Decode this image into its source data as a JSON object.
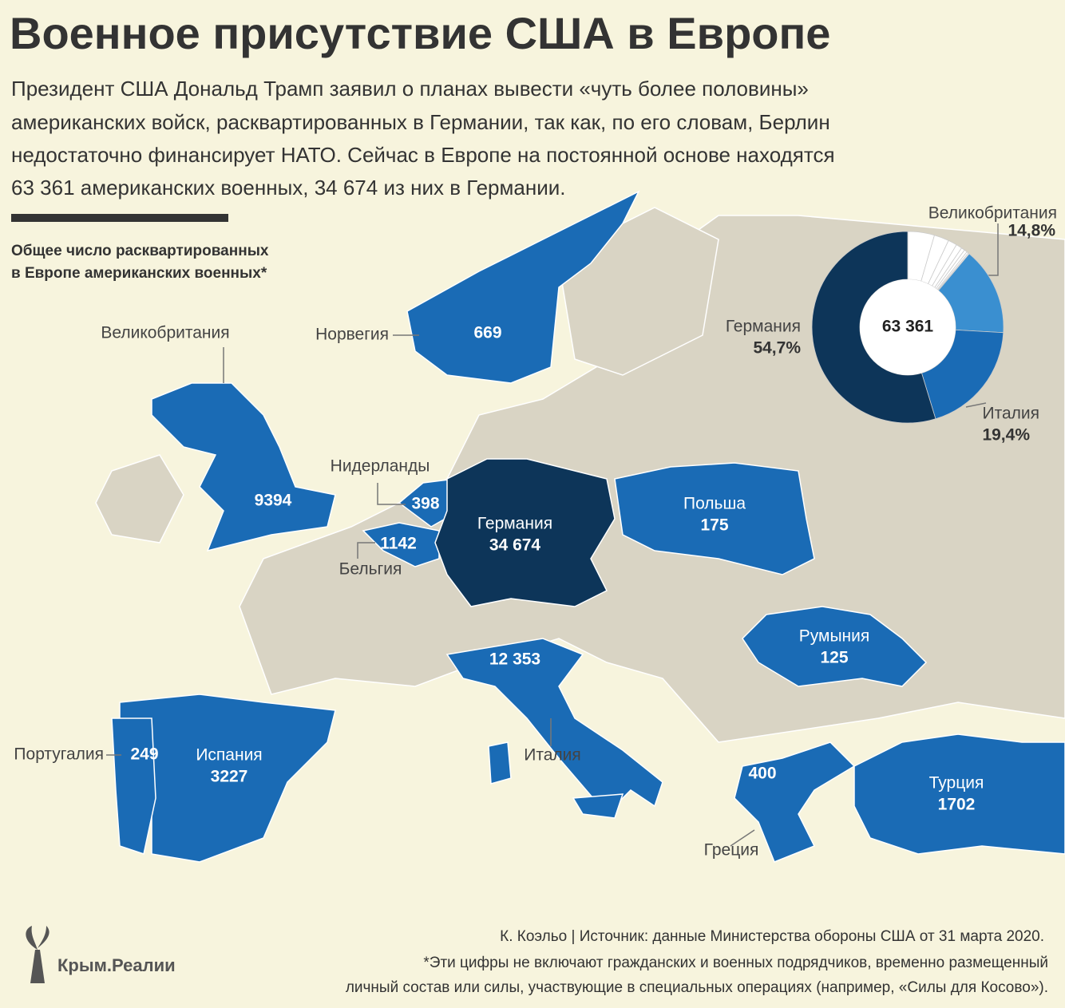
{
  "header": {
    "title": "Военное присутствие США в Европе",
    "lead": [
      "Президент США Дональд Трамп заявил о планах вывести «чуть более половины»",
      "американских войск, расквартированных в Германии, так как, по его словам, Берлин",
      "недостаточно финансирует НАТО. Сейчас в Европе на постоянной основе находятся",
      "63 361 американских военных, 34 674 из них в Германии."
    ]
  },
  "map": {
    "subtitle": [
      "Общее число расквартированных",
      "в Европе американских военных*"
    ],
    "countries": [
      {
        "name": "Германия",
        "value": "34 674"
      },
      {
        "name": "Италия",
        "value": "12 353"
      },
      {
        "name": "Великобритания",
        "value": "9394"
      },
      {
        "name": "Испания",
        "value": "3227"
      },
      {
        "name": "Турция",
        "value": "1702"
      },
      {
        "name": "Бельгия",
        "value": "1142"
      },
      {
        "name": "Норвегия",
        "value": "669"
      },
      {
        "name": "Греция",
        "value": "400"
      },
      {
        "name": "Нидерланды",
        "value": "398"
      },
      {
        "name": "Португалия",
        "value": "249"
      },
      {
        "name": "Польша",
        "value": "175"
      },
      {
        "name": "Румыния",
        "value": "125"
      }
    ]
  },
  "donut": {
    "center": "63 361",
    "segments": [
      {
        "name": "Великобритания",
        "value": 14.8,
        "value_label": "14,8%",
        "color": "#3a8fd0"
      },
      {
        "name": "Италия",
        "value": 19.4,
        "value_label": "19,4%",
        "color": "#1a6bb5"
      },
      {
        "name": "Германия",
        "value": 54.7,
        "value_label": "54,7%",
        "color": "#0d3559"
      }
    ],
    "others": {
      "values": [
        4.5,
        2.5,
        1.5,
        1,
        0.6,
        0.5,
        0.3,
        0.2
      ],
      "color": "#ffffff"
    }
  },
  "footer": {
    "brand": "Крым.Реалии",
    "source": "К. Коэльо | Источник: данные Министерства обороны США от 31 марта 2020.",
    "note": [
      "*Эти цифры не включают гражданских и военных подрядчиков, временно размещенный",
      "личный состав или силы, участвующие в специальных операциях (например, «Силы для Косово»)."
    ]
  }
}
